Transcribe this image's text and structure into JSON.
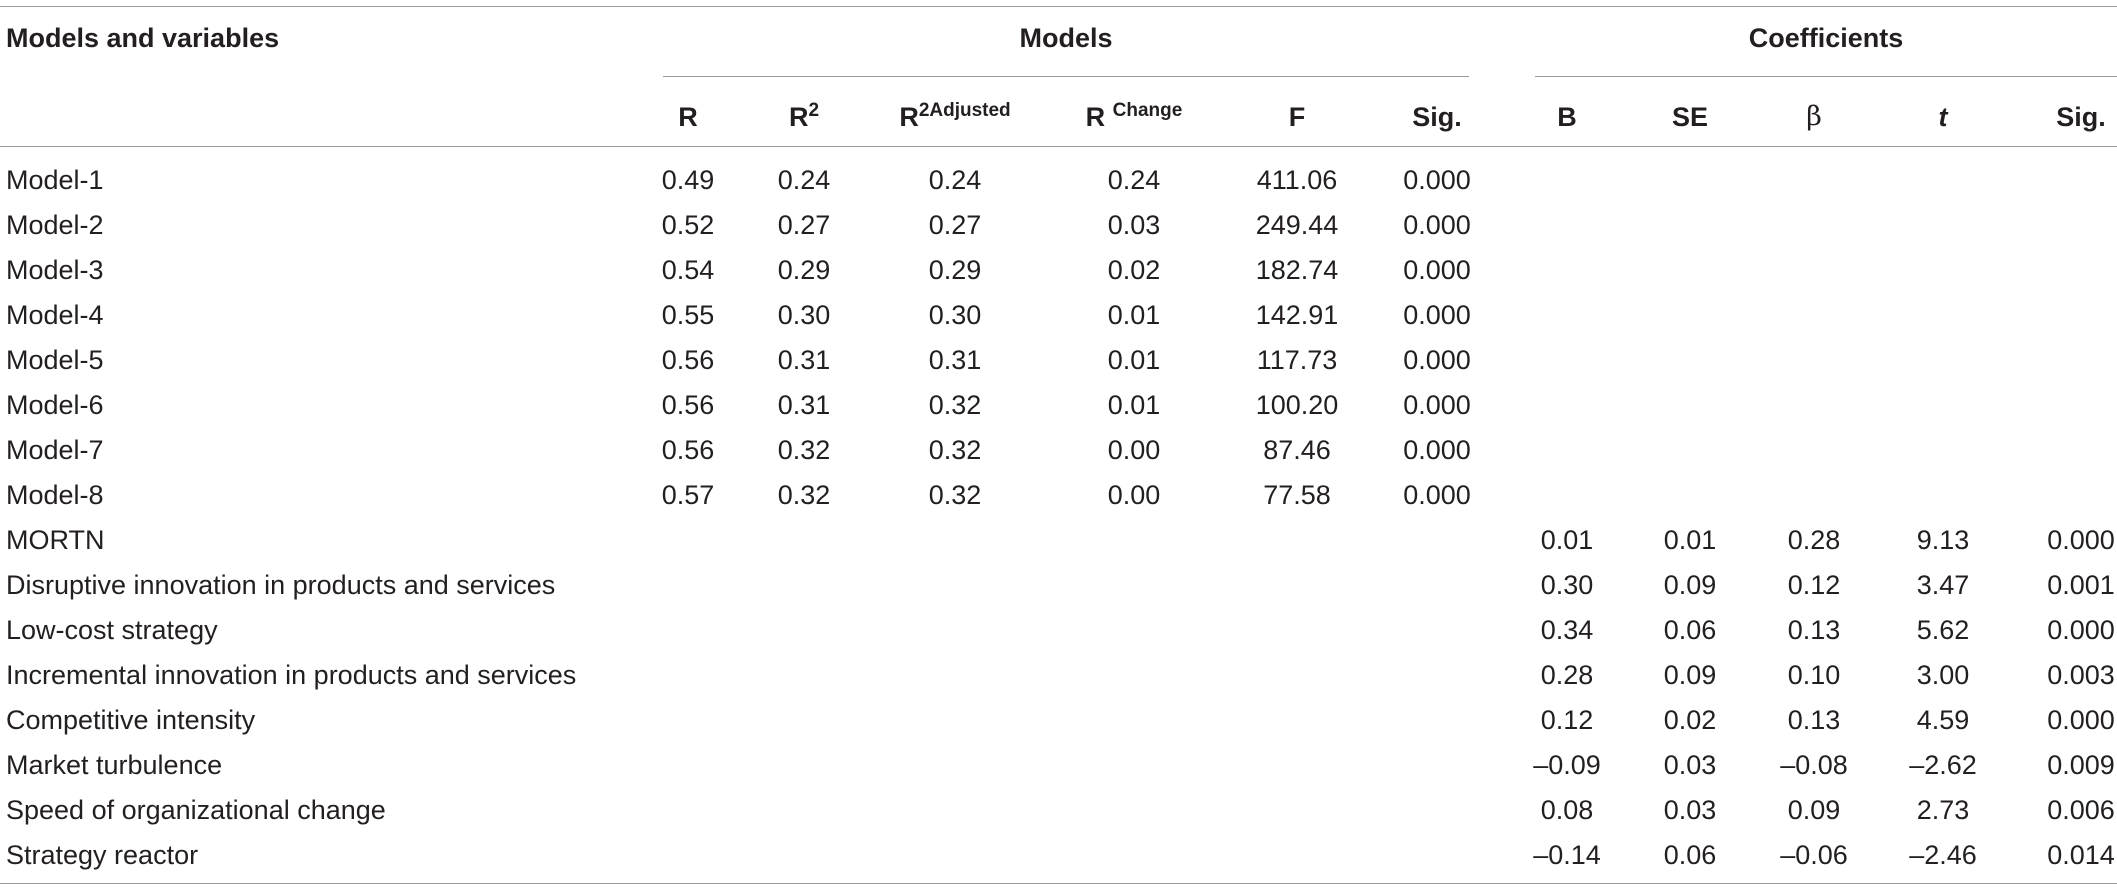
{
  "header": {
    "stub": "Models and variables",
    "group_models": "Models",
    "group_coefficients": "Coefficients",
    "cols": {
      "R": "R",
      "R2_base": "R",
      "R2_sup": "2",
      "R2adj_base": "R",
      "R2adj_sup": "2Adjusted",
      "Rchange_base": "R",
      "Rchange_sup": "Change",
      "F": "F",
      "Sig_models": "Sig.",
      "B": "B",
      "SE": "SE",
      "beta": "β",
      "t": "t",
      "Sig_coeffs": "Sig."
    }
  },
  "model_rows": [
    {
      "label": "Model-1",
      "R": "0.49",
      "R2": "0.24",
      "R2adj": "0.24",
      "Rchange": "0.24",
      "F": "411.06",
      "Sig": "0.000"
    },
    {
      "label": "Model-2",
      "R": "0.52",
      "R2": "0.27",
      "R2adj": "0.27",
      "Rchange": "0.03",
      "F": "249.44",
      "Sig": "0.000"
    },
    {
      "label": "Model-3",
      "R": "0.54",
      "R2": "0.29",
      "R2adj": "0.29",
      "Rchange": "0.02",
      "F": "182.74",
      "Sig": "0.000"
    },
    {
      "label": "Model-4",
      "R": "0.55",
      "R2": "0.30",
      "R2adj": "0.30",
      "Rchange": "0.01",
      "F": "142.91",
      "Sig": "0.000"
    },
    {
      "label": "Model-5",
      "R": "0.56",
      "R2": "0.31",
      "R2adj": "0.31",
      "Rchange": "0.01",
      "F": "117.73",
      "Sig": "0.000"
    },
    {
      "label": "Model-6",
      "R": "0.56",
      "R2": "0.31",
      "R2adj": "0.32",
      "Rchange": "0.01",
      "F": "100.20",
      "Sig": "0.000"
    },
    {
      "label": "Model-7",
      "R": "0.56",
      "R2": "0.32",
      "R2adj": "0.32",
      "Rchange": "0.00",
      "F": "87.46",
      "Sig": "0.000"
    },
    {
      "label": "Model-8",
      "R": "0.57",
      "R2": "0.32",
      "R2adj": "0.32",
      "Rchange": "0.00",
      "F": "77.58",
      "Sig": "0.000"
    }
  ],
  "coef_rows": [
    {
      "label": "MORTN",
      "B": "0.01",
      "SE": "0.01",
      "beta": "0.28",
      "t": "9.13",
      "Sig": "0.000"
    },
    {
      "label": "Disruptive innovation in products and services",
      "B": "0.30",
      "SE": "0.09",
      "beta": "0.12",
      "t": "3.47",
      "Sig": "0.001"
    },
    {
      "label": "Low-cost strategy",
      "B": "0.34",
      "SE": "0.06",
      "beta": "0.13",
      "t": "5.62",
      "Sig": "0.000"
    },
    {
      "label": "Incremental innovation in products and services",
      "B": "0.28",
      "SE": "0.09",
      "beta": "0.10",
      "t": "3.00",
      "Sig": "0.003"
    },
    {
      "label": "Competitive intensity",
      "B": "0.12",
      "SE": "0.02",
      "beta": "0.13",
      "t": "4.59",
      "Sig": "0.000"
    },
    {
      "label": "Market turbulence",
      "B": "–0.09",
      "SE": "0.03",
      "beta": "–0.08",
      "t": "–2.62",
      "Sig": "0.009"
    },
    {
      "label": "Speed of organizational change",
      "B": "0.08",
      "SE": "0.03",
      "beta": "0.09",
      "t": "2.73",
      "Sig": "0.006"
    },
    {
      "label": "Strategy reactor",
      "B": "–0.14",
      "SE": "0.06",
      "beta": "–0.06",
      "t": "–2.46",
      "Sig": "0.014"
    }
  ]
}
